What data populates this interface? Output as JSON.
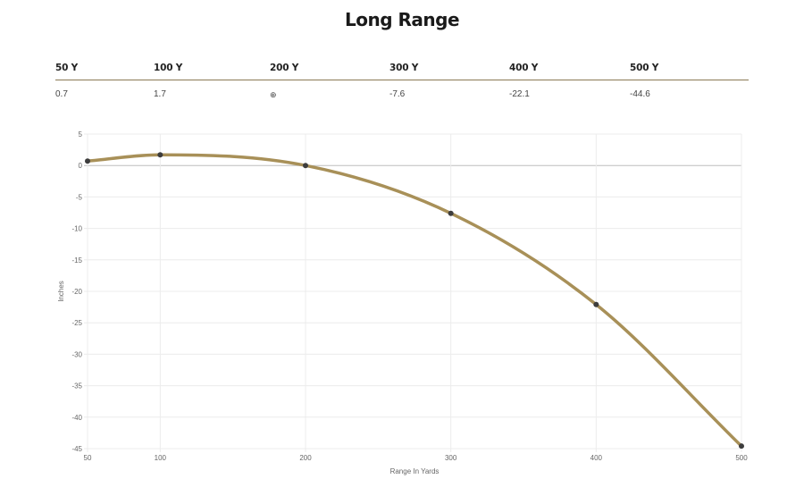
{
  "title": "Long Range",
  "table": {
    "headers": [
      "50 Y",
      "100 Y",
      "200 Y",
      "300 Y",
      "400 Y",
      "500 Y"
    ],
    "values": [
      "0.7",
      "1.7",
      "⊕",
      "-7.6",
      "-22.1",
      "-44.6"
    ]
  },
  "chart_data": {
    "type": "line",
    "xlabel": "Range In Yards",
    "ylabel": "Inches",
    "x": [
      50,
      100,
      200,
      300,
      400,
      500
    ],
    "xticks": [
      50,
      100,
      200,
      300,
      400,
      500
    ],
    "yticks": [
      5,
      0,
      -5,
      -10,
      -15,
      -20,
      -25,
      -30,
      -35,
      -40,
      -45
    ],
    "xlim": [
      50,
      500
    ],
    "ylim": [
      -45,
      5
    ],
    "series": [
      {
        "values": [
          0.7,
          1.7,
          0,
          -7.6,
          -22.1,
          -44.6
        ],
        "color": "#a89058"
      }
    ],
    "point_color": "#3d3d3d",
    "grid": true
  }
}
